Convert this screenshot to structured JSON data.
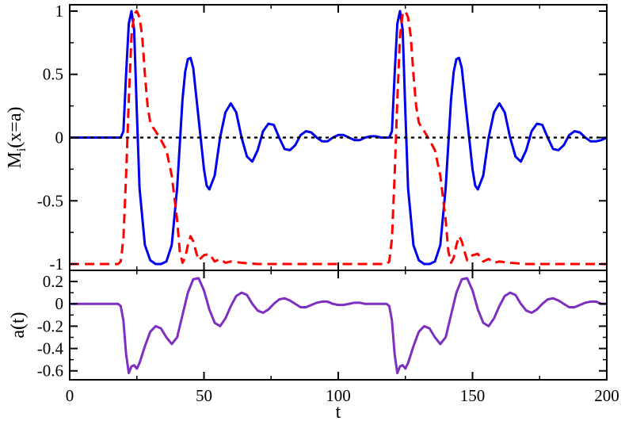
{
  "chart_data": [
    {
      "type": "line",
      "title": "",
      "xlabel": "",
      "ylabel": "M",
      "ylabel_sub": "i",
      "ylabel_tail": "(x=a)",
      "xlim": [
        0,
        200
      ],
      "ylim": [
        -1.05,
        1.05
      ],
      "xticks": [
        0,
        50,
        100,
        150,
        200
      ],
      "xtick_labels": [
        "",
        "",
        "",
        "",
        ""
      ],
      "yticks": [
        -1,
        -0.5,
        0,
        0.5,
        1
      ],
      "ytick_labels": [
        "-1",
        "-0.5",
        "0",
        "0.5",
        "1"
      ],
      "grid": false,
      "legend": "none",
      "series": [
        {
          "color": "#0000ee",
          "style": "solid",
          "x": [
            0,
            19,
            20,
            21,
            22,
            23,
            24,
            25,
            26,
            28,
            30,
            32,
            34,
            36,
            38,
            40,
            42,
            43,
            44,
            45,
            46,
            48,
            50,
            51,
            52,
            54,
            56,
            58,
            60,
            62,
            64,
            66,
            68,
            70,
            72,
            74,
            76,
            78,
            80,
            82,
            84,
            86,
            88,
            90,
            92,
            94,
            96,
            98,
            100,
            102,
            104,
            106,
            108,
            110,
            112,
            114,
            116,
            118,
            119,
            120,
            121,
            122,
            123,
            124,
            125,
            126,
            128,
            130,
            132,
            134,
            136,
            138,
            140,
            142,
            143,
            144,
            145,
            146,
            148,
            150,
            151,
            152,
            154,
            156,
            158,
            160,
            162,
            164,
            166,
            168,
            170,
            172,
            174,
            176,
            178,
            180,
            182,
            184,
            186,
            188,
            190,
            192,
            194,
            196,
            198,
            200
          ],
          "values": [
            0,
            0,
            0.05,
            0.5,
            0.9,
            1.0,
            0.85,
            0.2,
            -0.4,
            -0.85,
            -0.97,
            -1.0,
            -1.0,
            -0.98,
            -0.85,
            -0.4,
            0.3,
            0.52,
            0.62,
            0.63,
            0.55,
            0.15,
            -0.25,
            -0.38,
            -0.41,
            -0.3,
            0.0,
            0.2,
            0.27,
            0.2,
            0.0,
            -0.15,
            -0.19,
            -0.1,
            0.05,
            0.11,
            0.1,
            0.0,
            -0.09,
            -0.1,
            -0.06,
            0.02,
            0.05,
            0.04,
            0.0,
            -0.03,
            -0.03,
            0.0,
            0.02,
            0.02,
            0.0,
            -0.02,
            -0.02,
            0.0,
            0.01,
            0.01,
            0.0,
            0.0,
            0.0,
            0.05,
            0.5,
            0.9,
            1.0,
            0.85,
            0.2,
            -0.4,
            -0.85,
            -0.97,
            -1.0,
            -1.0,
            -0.98,
            -0.85,
            -0.4,
            0.3,
            0.52,
            0.62,
            0.63,
            0.55,
            0.15,
            -0.25,
            -0.38,
            -0.41,
            -0.3,
            0.0,
            0.2,
            0.27,
            0.2,
            0.0,
            -0.15,
            -0.19,
            -0.1,
            0.05,
            0.11,
            0.1,
            0.0,
            -0.09,
            -0.1,
            -0.06,
            0.02,
            0.05,
            0.04,
            0.0,
            -0.03,
            -0.03,
            -0.02,
            0.0
          ]
        },
        {
          "color": "#ff0000",
          "style": "dashed",
          "x": [
            0,
            18,
            19,
            20,
            21,
            22,
            23,
            24,
            25,
            26,
            27,
            28,
            29,
            30,
            31,
            32,
            34,
            36,
            38,
            40,
            41,
            42,
            43,
            44,
            45,
            46,
            47,
            48,
            50,
            52,
            54,
            56,
            58,
            60,
            64,
            70,
            80,
            90,
            100,
            110,
            118,
            119,
            120,
            121,
            122,
            123,
            124,
            125,
            126,
            127,
            128,
            129,
            130,
            131,
            132,
            134,
            136,
            138,
            140,
            141,
            142,
            143,
            144,
            145,
            146,
            147,
            148,
            150,
            152,
            154,
            156,
            158,
            160,
            164,
            170,
            180,
            190,
            200
          ],
          "values": [
            -1,
            -1,
            -0.98,
            -0.8,
            -0.3,
            0.3,
            0.8,
            0.98,
            1.0,
            0.95,
            0.8,
            0.5,
            0.25,
            0.12,
            0.08,
            0.05,
            -0.02,
            -0.1,
            -0.3,
            -0.65,
            -0.9,
            -0.99,
            -0.95,
            -0.85,
            -0.78,
            -0.82,
            -0.9,
            -0.97,
            -0.93,
            -0.92,
            -0.98,
            -0.96,
            -0.99,
            -0.98,
            -0.99,
            -1,
            -1,
            -1,
            -1,
            -1,
            -1,
            -0.98,
            -0.8,
            -0.3,
            0.3,
            0.8,
            0.98,
            1.0,
            0.95,
            0.8,
            0.5,
            0.25,
            0.12,
            0.08,
            0.05,
            -0.02,
            -0.1,
            -0.3,
            -0.65,
            -0.9,
            -0.99,
            -0.95,
            -0.85,
            -0.78,
            -0.82,
            -0.9,
            -0.97,
            -0.93,
            -0.92,
            -0.98,
            -0.96,
            -0.99,
            -0.98,
            -0.99,
            -1,
            -1,
            -1,
            -1
          ]
        },
        {
          "color": "#000000",
          "style": "dotted",
          "x": [
            0,
            200
          ],
          "values": [
            0,
            0
          ]
        }
      ]
    },
    {
      "type": "line",
      "title": "",
      "xlabel": "t",
      "ylabel": "a(t)",
      "xlim": [
        0,
        200
      ],
      "ylim": [
        -0.68,
        0.3
      ],
      "xticks": [
        0,
        50,
        100,
        150,
        200
      ],
      "xtick_labels": [
        "0",
        "50",
        "100",
        "150",
        "200"
      ],
      "yticks": [
        -0.6,
        -0.4,
        -0.2,
        0,
        0.2
      ],
      "ytick_labels": [
        "-0.6",
        "-0.4",
        "-0.2",
        "0",
        "0.2"
      ],
      "grid": false,
      "legend": "none",
      "series": [
        {
          "color": "#7e2fc1",
          "style": "solid",
          "x": [
            0,
            18,
            19,
            20,
            21,
            22,
            23,
            24,
            25,
            26,
            28,
            30,
            32,
            34,
            36,
            38,
            40,
            42,
            44,
            46,
            48,
            50,
            52,
            54,
            56,
            58,
            60,
            62,
            64,
            66,
            68,
            70,
            72,
            74,
            76,
            78,
            80,
            82,
            84,
            86,
            88,
            90,
            92,
            94,
            96,
            98,
            100,
            102,
            104,
            106,
            108,
            110,
            112,
            114,
            116,
            118,
            119,
            120,
            121,
            122,
            123,
            124,
            125,
            126,
            128,
            130,
            132,
            134,
            136,
            138,
            140,
            142,
            144,
            146,
            148,
            150,
            152,
            154,
            156,
            158,
            160,
            162,
            164,
            166,
            168,
            170,
            172,
            174,
            176,
            178,
            180,
            182,
            184,
            186,
            188,
            190,
            192,
            194,
            196,
            198,
            200
          ],
          "values": [
            0,
            0,
            -0.02,
            -0.15,
            -0.45,
            -0.62,
            -0.56,
            -0.55,
            -0.58,
            -0.53,
            -0.38,
            -0.25,
            -0.2,
            -0.22,
            -0.3,
            -0.36,
            -0.3,
            -0.1,
            0.1,
            0.22,
            0.23,
            0.12,
            -0.05,
            -0.17,
            -0.2,
            -0.13,
            -0.02,
            0.07,
            0.1,
            0.08,
            0.0,
            -0.06,
            -0.08,
            -0.05,
            0.0,
            0.04,
            0.05,
            0.03,
            0.0,
            -0.03,
            -0.03,
            -0.01,
            0.01,
            0.02,
            0.02,
            0.0,
            -0.01,
            -0.01,
            0.0,
            0.01,
            0.01,
            0.0,
            0.0,
            0.0,
            0.0,
            0.0,
            -0.02,
            -0.15,
            -0.45,
            -0.62,
            -0.56,
            -0.55,
            -0.58,
            -0.53,
            -0.38,
            -0.25,
            -0.2,
            -0.22,
            -0.3,
            -0.36,
            -0.3,
            -0.1,
            0.1,
            0.22,
            0.23,
            0.12,
            -0.05,
            -0.17,
            -0.2,
            -0.13,
            -0.02,
            0.07,
            0.1,
            0.08,
            0.0,
            -0.06,
            -0.08,
            -0.05,
            0.0,
            0.04,
            0.05,
            0.03,
            0.0,
            -0.03,
            -0.03,
            -0.01,
            0.01,
            0.02,
            0.02,
            0.0,
            0.0
          ]
        }
      ]
    }
  ]
}
